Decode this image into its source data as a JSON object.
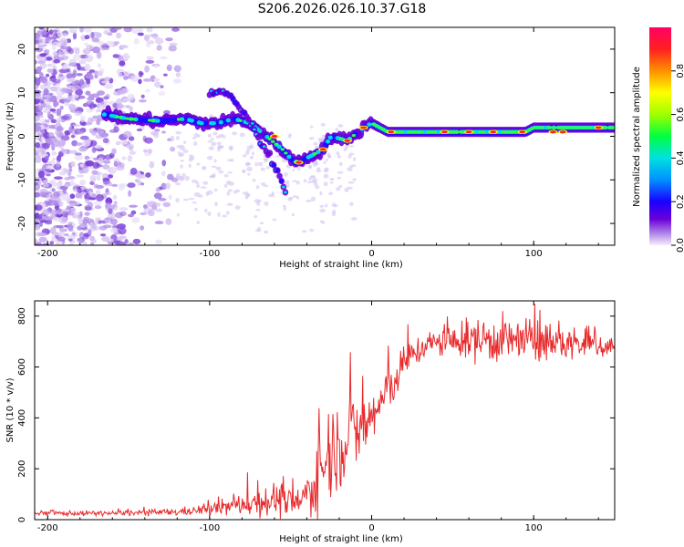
{
  "title": "S206.2026.026.10.37.G18",
  "chart_data": [
    {
      "type": "heatmap",
      "title": "S206.2026.026.10.37.G18",
      "xlabel": "Height of straight line (km)",
      "ylabel": "Frequency (Hz)",
      "xlim": [
        -208,
        150
      ],
      "ylim": [
        -25,
        25
      ],
      "xticks": [
        -200,
        -100,
        0,
        100
      ],
      "yticks": [
        -20,
        -10,
        0,
        10,
        20
      ],
      "colorbar": {
        "label": "Normalized spectral amplitude",
        "range": [
          0,
          1
        ],
        "ticks": [
          0.0,
          0.2,
          0.4,
          0.6,
          0.8
        ]
      },
      "ridge": [
        {
          "x": -165,
          "f": 5
        },
        {
          "x": -150,
          "f": 4
        },
        {
          "x": -130,
          "f": 3.5
        },
        {
          "x": -115,
          "f": 4
        },
        {
          "x": -105,
          "f": 3
        },
        {
          "x": -95,
          "f": 3
        },
        {
          "x": -85,
          "f": 4
        },
        {
          "x": -75,
          "f": 3
        },
        {
          "x": -65,
          "f": 0
        },
        {
          "x": -55,
          "f": -3
        },
        {
          "x": -48,
          "f": -6
        },
        {
          "x": -40,
          "f": -5
        },
        {
          "x": -30,
          "f": -3
        },
        {
          "x": -25,
          "f": 0
        },
        {
          "x": -15,
          "f": -1
        },
        {
          "x": -5,
          "f": 2
        },
        {
          "x": 0,
          "f": 3
        },
        {
          "x": 10,
          "f": 1
        },
        {
          "x": 50,
          "f": 1
        },
        {
          "x": 95,
          "f": 1
        },
        {
          "x": 100,
          "f": 2
        },
        {
          "x": 150,
          "f": 2
        }
      ],
      "secondary_ridge": [
        {
          "x": -100,
          "f": 10
        },
        {
          "x": -90,
          "f": 10
        },
        {
          "x": -80,
          "f": 6
        },
        {
          "x": -70,
          "f": 0
        },
        {
          "x": -62,
          "f": -5
        },
        {
          "x": -52,
          "f": -13
        }
      ]
    },
    {
      "type": "line",
      "xlabel": "Height of straight line (km)",
      "ylabel": "SNR (10 * v/v)",
      "xlim": [
        -208,
        150
      ],
      "ylim": [
        0,
        860
      ],
      "xticks": [
        -200,
        -100,
        0,
        100
      ],
      "yticks": [
        0,
        200,
        400,
        600,
        800
      ],
      "color": "#e8292b",
      "series": [
        {
          "name": "SNR",
          "envelope_x": [
            -208,
            -160,
            -120,
            -100,
            -80,
            -60,
            -45,
            -35,
            -25,
            -15,
            -5,
            5,
            15,
            25,
            35,
            50,
            70,
            100,
            130,
            150
          ],
          "envelope_mean": [
            25,
            25,
            30,
            40,
            60,
            80,
            60,
            150,
            280,
            320,
            360,
            450,
            560,
            650,
            690,
            700,
            710,
            700,
            690,
            680
          ],
          "envelope_noise": [
            8,
            8,
            12,
            20,
            35,
            60,
            30,
            120,
            160,
            130,
            120,
            90,
            70,
            50,
            45,
            50,
            80,
            70,
            50,
            40
          ]
        }
      ]
    }
  ]
}
